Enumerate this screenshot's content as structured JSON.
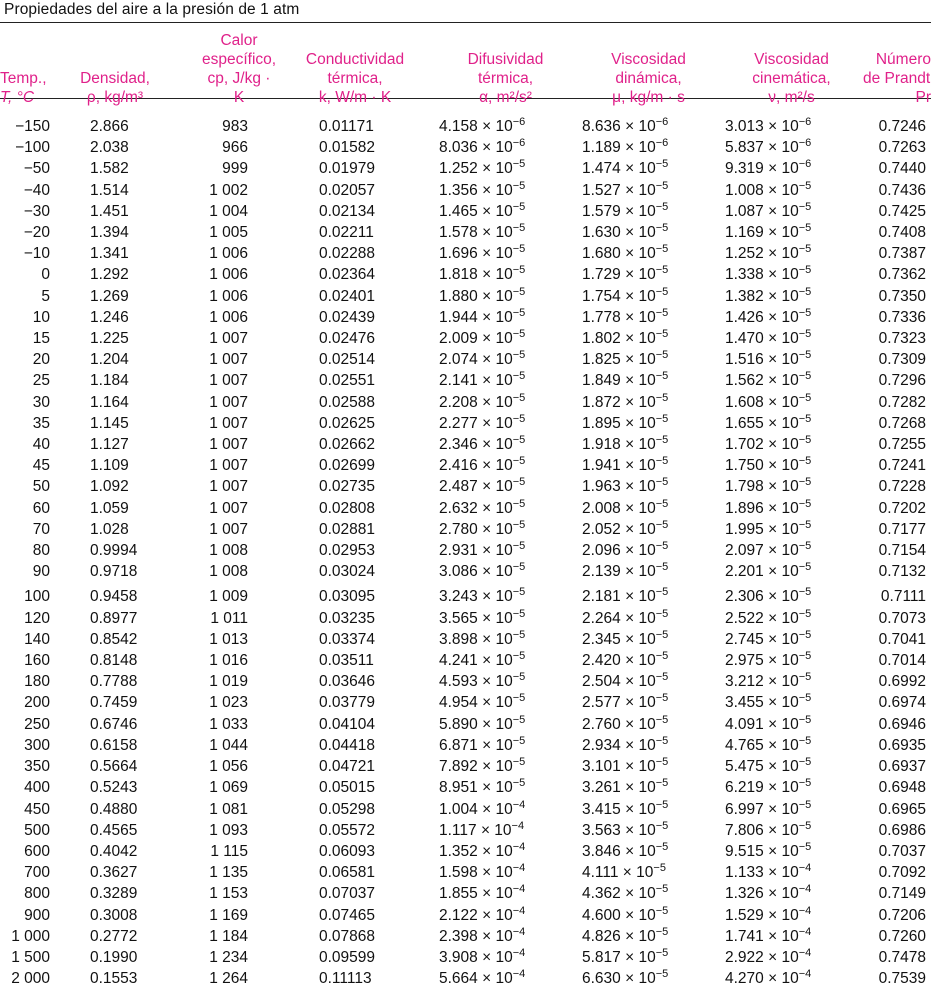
{
  "caption": "Propiedades del aire a la presión de 1 atm",
  "header": {
    "temp": [
      "Temp.,",
      "T, °C"
    ],
    "dens": [
      "Densidad,",
      "ρ, kg/m³"
    ],
    "cp": [
      "Calor",
      "específico,",
      "cp, J/kg · K"
    ],
    "k": [
      "Conductividad",
      "térmica,",
      "k, W/m · K"
    ],
    "alpha": [
      "Difusividad",
      "térmica,",
      "α, m²/s²"
    ],
    "mu": [
      "Viscosidad",
      "dinámica,",
      "μ, kg/m · s"
    ],
    "nu": [
      "Viscosidad",
      "cinemática,",
      "ν, m²/s"
    ],
    "pr": [
      "Número",
      "de Prandtl",
      "Pr"
    ]
  },
  "rows": [
    [
      "−150",
      "2.866",
      "983",
      "0.01171",
      "4.158 × 10",
      "−6",
      "8.636 × 10",
      "−6",
      "3.013 × 10",
      "−6",
      "0.7246"
    ],
    [
      "−100",
      "2.038",
      "966",
      "0.01582",
      "8.036 × 10",
      "−6",
      "1.189 × 10",
      "−6",
      "5.837 × 10",
      "−6",
      "0.7263"
    ],
    [
      "−50",
      "1.582",
      "999",
      "0.01979",
      "1.252 × 10",
      "−5",
      "1.474 × 10",
      "−5",
      "9.319 × 10",
      "−6",
      "0.7440"
    ],
    [
      "−40",
      "1.514",
      "1 002",
      "0.02057",
      "1.356 × 10",
      "−5",
      "1.527 × 10",
      "−5",
      "1.008 × 10",
      "−5",
      "0.7436"
    ],
    [
      "−30",
      "1.451",
      "1 004",
      "0.02134",
      "1.465 × 10",
      "−5",
      "1.579 × 10",
      "−5",
      "1.087 × 10",
      "−5",
      "0.7425"
    ],
    [
      "−20",
      "1.394",
      "1 005",
      "0.02211",
      "1.578 × 10",
      "−5",
      "1.630 × 10",
      "−5",
      "1.169 × 10",
      "−5",
      "0.7408"
    ],
    [
      "−10",
      "1.341",
      "1 006",
      "0.02288",
      "1.696 × 10",
      "−5",
      "1.680 × 10",
      "−5",
      "1.252 × 10",
      "−5",
      "0.7387"
    ],
    [
      "0",
      "1.292",
      "1 006",
      "0.02364",
      "1.818 × 10",
      "−5",
      "1.729 × 10",
      "−5",
      "1.338 × 10",
      "−5",
      "0.7362"
    ],
    [
      "5",
      "1.269",
      "1 006",
      "0.02401",
      "1.880 × 10",
      "−5",
      "1.754 × 10",
      "−5",
      "1.382 × 10",
      "−5",
      "0.7350"
    ],
    [
      "10",
      "1.246",
      "1 006",
      "0.02439",
      "1.944 × 10",
      "−5",
      "1.778 × 10",
      "−5",
      "1.426 × 10",
      "−5",
      "0.7336"
    ],
    [
      "15",
      "1.225",
      "1 007",
      "0.02476",
      "2.009 × 10",
      "−5",
      "1.802 × 10",
      "−5",
      "1.470 × 10",
      "−5",
      "0.7323"
    ],
    [
      "20",
      "1.204",
      "1 007",
      "0.02514",
      "2.074 × 10",
      "−5",
      "1.825 × 10",
      "−5",
      "1.516 × 10",
      "−5",
      "0.7309"
    ],
    [
      "25",
      "1.184",
      "1 007",
      "0.02551",
      "2.141 × 10",
      "−5",
      "1.849 × 10",
      "−5",
      "1.562 × 10",
      "−5",
      "0.7296"
    ],
    [
      "30",
      "1.164",
      "1 007",
      "0.02588",
      "2.208 × 10",
      "−5",
      "1.872 × 10",
      "−5",
      "1.608 × 10",
      "−5",
      "0.7282"
    ],
    [
      "35",
      "1.145",
      "1 007",
      "0.02625",
      "2.277 × 10",
      "−5",
      "1.895 × 10",
      "−5",
      "1.655 × 10",
      "−5",
      "0.7268"
    ],
    [
      "40",
      "1.127",
      "1 007",
      "0.02662",
      "2.346 × 10",
      "−5",
      "1.918 × 10",
      "−5",
      "1.702 × 10",
      "−5",
      "0.7255"
    ],
    [
      "45",
      "1.109",
      "1 007",
      "0.02699",
      "2.416 × 10",
      "−5",
      "1.941 × 10",
      "−5",
      "1.750 × 10",
      "−5",
      "0.7241"
    ],
    [
      "50",
      "1.092",
      "1 007",
      "0.02735",
      "2.487 × 10",
      "−5",
      "1.963 × 10",
      "−5",
      "1.798 × 10",
      "−5",
      "0.7228"
    ],
    [
      "60",
      "1.059",
      "1 007",
      "0.02808",
      "2.632 × 10",
      "−5",
      "2.008 × 10",
      "−5",
      "1.896 × 10",
      "−5",
      "0.7202"
    ],
    [
      "70",
      "1.028",
      "1 007",
      "0.02881",
      "2.780 × 10",
      "−5",
      "2.052 × 10",
      "−5",
      "1.995 × 10",
      "−5",
      "0.7177"
    ],
    [
      "80",
      "0.9994",
      "1 008",
      "0.02953",
      "2.931 × 10",
      "−5",
      "2.096 × 10",
      "−5",
      "2.097 × 10",
      "−5",
      "0.7154"
    ],
    [
      "90",
      "0.9718",
      "1 008",
      "0.03024",
      "3.086 × 10",
      "−5",
      "2.139 × 10",
      "−5",
      "2.201 × 10",
      "−5",
      "0.7132"
    ],
    [
      "100",
      "0.9458",
      "1 009",
      "0.03095",
      "3.243 × 10",
      "−5",
      "2.181 × 10",
      "−5",
      "2.306 × 10",
      "−5",
      "0.7111"
    ],
    [
      "120",
      "0.8977",
      "1 011",
      "0.03235",
      "3.565 × 10",
      "−5",
      "2.264 × 10",
      "−5",
      "2.522 × 10",
      "−5",
      "0.7073"
    ],
    [
      "140",
      "0.8542",
      "1 013",
      "0.03374",
      "3.898 × 10",
      "−5",
      "2.345 × 10",
      "−5",
      "2.745 × 10",
      "−5",
      "0.7041"
    ],
    [
      "160",
      "0.8148",
      "1 016",
      "0.03511",
      "4.241 × 10",
      "−5",
      "2.420 × 10",
      "−5",
      "2.975 × 10",
      "−5",
      "0.7014"
    ],
    [
      "180",
      "0.7788",
      "1 019",
      "0.03646",
      "4.593 × 10",
      "−5",
      "2.504 × 10",
      "−5",
      "3.212 × 10",
      "−5",
      "0.6992"
    ],
    [
      "200",
      "0.7459",
      "1 023",
      "0.03779",
      "4.954 × 10",
      "−5",
      "2.577 × 10",
      "−5",
      "3.455 × 10",
      "−5",
      "0.6974"
    ],
    [
      "250",
      "0.6746",
      "1 033",
      "0.04104",
      "5.890 × 10",
      "−5",
      "2.760 × 10",
      "−5",
      "4.091 × 10",
      "−5",
      "0.6946"
    ],
    [
      "300",
      "0.6158",
      "1 044",
      "0.04418",
      "6.871 × 10",
      "−5",
      "2.934 × 10",
      "−5",
      "4.765 × 10",
      "−5",
      "0.6935"
    ],
    [
      "350",
      "0.5664",
      "1 056",
      "0.04721",
      "7.892 × 10",
      "−5",
      "3.101 × 10",
      "−5",
      "5.475 × 10",
      "−5",
      "0.6937"
    ],
    [
      "400",
      "0.5243",
      "1 069",
      "0.05015",
      "8.951 × 10",
      "−5",
      "3.261 × 10",
      "−5",
      "6.219 × 10",
      "−5",
      "0.6948"
    ],
    [
      "450",
      "0.4880",
      "1 081",
      "0.05298",
      "1.004 × 10",
      "−4",
      "3.415 × 10",
      "−5",
      "6.997 × 10",
      "−5",
      "0.6965"
    ],
    [
      "500",
      "0.4565",
      "1 093",
      "0.05572",
      "1.117 × 10",
      "−4",
      "3.563 × 10",
      "−5",
      "7.806 × 10",
      "−5",
      "0.6986"
    ],
    [
      "600",
      "0.4042",
      "1 115",
      "0.06093",
      "1.352 × 10",
      "−4",
      "3.846 × 10",
      "−5",
      "9.515 × 10",
      "−5",
      "0.7037"
    ],
    [
      "700",
      "0.3627",
      "1 135",
      "0.06581",
      "1.598 × 10",
      "−4",
      "4.111 × 10",
      "−5",
      "1.133 × 10",
      "−4",
      "0.7092"
    ],
    [
      "800",
      "0.3289",
      "1 153",
      "0.07037",
      "1.855 × 10",
      "−4",
      "4.362 × 10",
      "−5",
      "1.326 × 10",
      "−4",
      "0.7149"
    ],
    [
      "900",
      "0.3008",
      "1 169",
      "0.07465",
      "2.122 × 10",
      "−4",
      "4.600 × 10",
      "−5",
      "1.529 × 10",
      "−4",
      "0.7206"
    ],
    [
      "1 000",
      "0.2772",
      "1 184",
      "0.07868",
      "2.398 × 10",
      "−4",
      "4.826 × 10",
      "−5",
      "1.741 × 10",
      "−4",
      "0.7260"
    ],
    [
      "1 500",
      "0.1990",
      "1 234",
      "0.09599",
      "3.908 × 10",
      "−4",
      "5.817 × 10",
      "−5",
      "2.922 × 10",
      "−4",
      "0.7478"
    ],
    [
      "2 000",
      "0.1553",
      "1 264",
      "0.11113",
      "5.664 × 10",
      "−4",
      "6.630 × 10",
      "−5",
      "4.270 × 10",
      "−4",
      "0.7539"
    ]
  ],
  "colors": {
    "header": "#e0218a",
    "text": "#111111",
    "rule": "#222222"
  }
}
